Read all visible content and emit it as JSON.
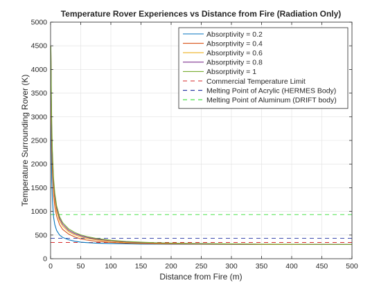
{
  "chart_data": {
    "type": "line",
    "title": "Temperature Rover Experiences vs Distance from Fire (Radiation Only)",
    "xlabel": "Distance from Fire (m)",
    "ylabel": "Temperature Surrounding Rover (K)",
    "xlim": [
      0,
      500
    ],
    "ylim": [
      0,
      5000
    ],
    "xticks": [
      0,
      50,
      100,
      150,
      200,
      250,
      300,
      350,
      400,
      450,
      500
    ],
    "yticks": [
      0,
      500,
      1000,
      1500,
      2000,
      2500,
      3000,
      3500,
      4000,
      4500,
      5000
    ],
    "grid": true,
    "legend_position": "top-right",
    "series": [
      {
        "name": "Absorptivity = 0.2",
        "color": "#0072BD",
        "style": "solid",
        "x": [
          0.5,
          1,
          2,
          3,
          5,
          7,
          10,
          15,
          20,
          30,
          40,
          50,
          60,
          75,
          100,
          125,
          150,
          175,
          200,
          250,
          300,
          350,
          400,
          450,
          500
        ],
        "y": [
          4500,
          2600,
          1650,
          1250,
          880,
          720,
          600,
          500,
          450,
          400,
          370,
          350,
          340,
          330,
          320,
          315,
          310,
          308,
          306,
          304,
          302,
          301,
          300,
          300,
          300
        ]
      },
      {
        "name": "Absorptivity = 0.4",
        "color": "#D95319",
        "style": "solid",
        "x": [
          0.5,
          1,
          2,
          3,
          5,
          7,
          10,
          15,
          20,
          30,
          40,
          50,
          60,
          75,
          100,
          125,
          150,
          175,
          200,
          250,
          300,
          350,
          400,
          450,
          500
        ],
        "y": [
          4500,
          3150,
          2300,
          1850,
          1350,
          1100,
          900,
          720,
          620,
          520,
          460,
          420,
          395,
          370,
          345,
          330,
          322,
          316,
          312,
          307,
          304,
          303,
          302,
          301,
          300
        ]
      },
      {
        "name": "Absorptivity = 0.6",
        "color": "#EDB120",
        "style": "solid",
        "x": [
          0.5,
          1,
          2,
          3,
          5,
          7,
          10,
          15,
          20,
          30,
          40,
          50,
          60,
          75,
          100,
          125,
          150,
          175,
          200,
          250,
          300,
          350,
          400,
          450,
          500
        ],
        "y": [
          4500,
          3450,
          2550,
          2050,
          1520,
          1240,
          1000,
          800,
          690,
          570,
          505,
          460,
          430,
          400,
          365,
          345,
          333,
          325,
          319,
          312,
          308,
          305,
          303,
          302,
          301
        ]
      },
      {
        "name": "Absorptivity = 0.8",
        "color": "#7E2F8E",
        "style": "solid",
        "x": [
          0.5,
          1,
          2,
          3,
          5,
          7,
          10,
          15,
          20,
          30,
          40,
          50,
          60,
          75,
          100,
          125,
          150,
          175,
          200,
          250,
          300,
          350,
          400,
          450,
          500
        ],
        "y": [
          4500,
          3600,
          2700,
          2180,
          1620,
          1320,
          1070,
          850,
          730,
          600,
          530,
          485,
          450,
          415,
          380,
          357,
          342,
          332,
          325,
          316,
          311,
          307,
          305,
          303,
          302
        ]
      },
      {
        "name": "Absorptivity = 1",
        "color": "#77AC30",
        "style": "solid",
        "x": [
          0.5,
          1,
          2,
          3,
          5,
          7,
          10,
          15,
          20,
          30,
          40,
          50,
          60,
          75,
          100,
          125,
          150,
          175,
          200,
          250,
          300,
          350,
          400,
          450,
          500
        ],
        "y": [
          4500,
          3750,
          2850,
          2300,
          1700,
          1390,
          1120,
          890,
          765,
          630,
          555,
          505,
          470,
          430,
          390,
          365,
          349,
          338,
          330,
          320,
          313,
          309,
          306,
          304,
          303
        ]
      },
      {
        "name": "Commercial Temperature Limit",
        "color": "#D62728",
        "style": "dashed",
        "x": [
          0,
          500
        ],
        "y": [
          343,
          343
        ]
      },
      {
        "name": "Melting Point of Acrylic (HERMES Body)",
        "color": "#1F2FA0",
        "style": "dashed",
        "x": [
          0,
          500
        ],
        "y": [
          433,
          433
        ]
      },
      {
        "name": "Melting Point of Aluminum (DRIFT body)",
        "color": "#33DD33",
        "style": "dashed",
        "x": [
          0,
          500
        ],
        "y": [
          933,
          933
        ]
      }
    ]
  }
}
